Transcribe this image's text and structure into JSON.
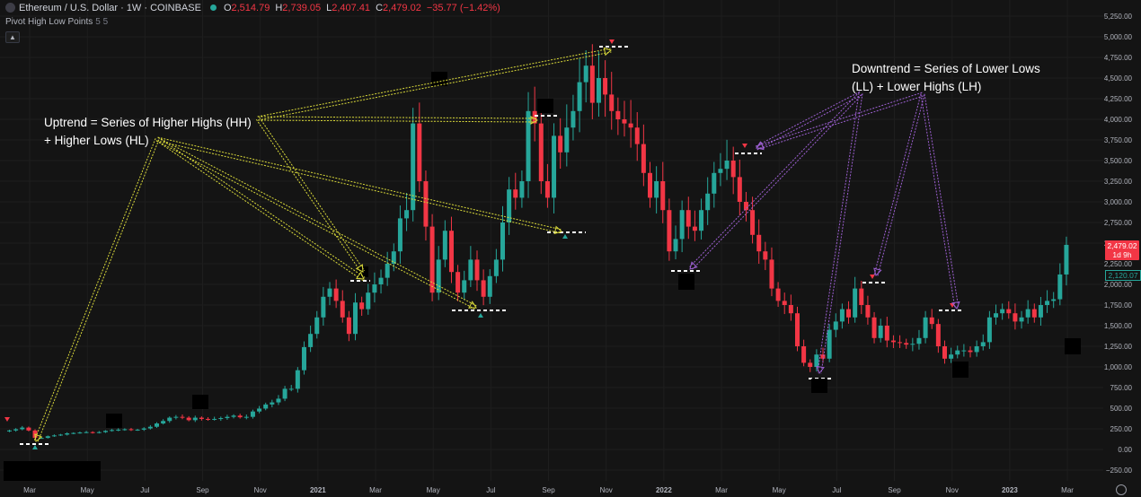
{
  "header": {
    "symbol": "Ethereum / U.S. Dollar · 1W · COINBASE",
    "ohlc": [
      {
        "k": "O",
        "v": "2,514.79"
      },
      {
        "k": "H",
        "v": "2,739.05"
      },
      {
        "k": "L",
        "v": "2,407.41"
      },
      {
        "k": "C",
        "v": "2,479.02"
      },
      {
        "k": "",
        "v": "−35.77 (−1.42%)"
      }
    ]
  },
  "indicator": {
    "name": "Pivot High Low Points",
    "params": "5 5"
  },
  "annotations": {
    "uptrend": [
      "Uptrend = Series of Higher Highs (HH)",
      "+ Higher Lows (HL)"
    ],
    "downtrend": [
      "Downtrend = Series of Lower Lows",
      "(LL) + Lower Highs (LH)"
    ]
  },
  "price_tag": {
    "price": "2,479.02",
    "countdown": "1d 9h",
    "secondary": "2,120.07"
  },
  "colors": {
    "up": "#26a69a",
    "down": "#f23645",
    "background": "#141414",
    "grid": "#1e1e1e",
    "yellow": "#d9d93a",
    "purple": "#9c5fd1"
  },
  "chart_data": {
    "type": "candlestick",
    "y_ticks": [
      "5,250.00",
      "5,000.00",
      "4,750.00",
      "4,500.00",
      "4,250.00",
      "4,000.00",
      "3,750.00",
      "3,500.00",
      "3,250.00",
      "3,000.00",
      "2,750.00",
      "2,500.00",
      "2,250.00",
      "2,000.00",
      "1,750.00",
      "1,500.00",
      "1,250.00",
      "1,000.00",
      "750.00",
      "500.00",
      "250.00",
      "0.00",
      "−250.00"
    ],
    "y_tick_values": [
      5250,
      5000,
      4750,
      4500,
      4250,
      4000,
      3750,
      3500,
      3250,
      3000,
      2750,
      2500,
      2250,
      2000,
      1750,
      1500,
      1250,
      1000,
      750,
      500,
      250,
      0,
      -250
    ],
    "x_ticks": [
      {
        "label": "Mar",
        "week": 0
      },
      {
        "label": "May",
        "week": 9
      },
      {
        "label": "Jul",
        "week": 18
      },
      {
        "label": "Sep",
        "week": 27
      },
      {
        "label": "Nov",
        "week": 36
      },
      {
        "label": "2021",
        "week": 45
      },
      {
        "label": "Mar",
        "week": 54
      },
      {
        "label": "May",
        "week": 63
      },
      {
        "label": "Jul",
        "week": 72
      },
      {
        "label": "Sep",
        "week": 81
      },
      {
        "label": "Nov",
        "week": 90
      },
      {
        "label": "2022",
        "week": 99
      },
      {
        "label": "Mar",
        "week": 108
      },
      {
        "label": "May",
        "week": 117
      },
      {
        "label": "Jul",
        "week": 126
      },
      {
        "label": "Sep",
        "week": 135
      },
      {
        "label": "Nov",
        "week": 144
      },
      {
        "label": "2023",
        "week": 153
      },
      {
        "label": "Mar",
        "week": 162
      }
    ],
    "closes": [
      230,
      245,
      265,
      230,
      140,
      140,
      160,
      170,
      180,
      195,
      200,
      205,
      210,
      205,
      210,
      225,
      235,
      240,
      245,
      235,
      240,
      255,
      275,
      315,
      345,
      385,
      395,
      385,
      355,
      385,
      370,
      365,
      370,
      380,
      395,
      410,
      390,
      395,
      460,
      495,
      545,
      570,
      615,
      735,
      735,
      960,
      1240,
      1400,
      1600,
      1850,
      1950,
      1800,
      1600,
      1400,
      1780,
      1700,
      1900,
      2000,
      2080,
      2250,
      2400,
      2800,
      2900,
      3950,
      3250,
      2700,
      1900,
      2300,
      2650,
      2150,
      1900,
      2050,
      2300,
      2050,
      1850,
      2100,
      2300,
      2750,
      3150,
      3050,
      3250,
      4100,
      3950,
      3250,
      3050,
      3800,
      3600,
      3900,
      4100,
      4450,
      4650,
      4200,
      4500,
      4300,
      4100,
      4000,
      3950,
      3900,
      3700,
      3350,
      3050,
      3250,
      2900,
      2400,
      2550,
      2900,
      2700,
      2650,
      2900,
      3100,
      3350,
      3400,
      3500,
      3300,
      3000,
      2900,
      2600,
      2400,
      2300,
      1950,
      1800,
      1750,
      1650,
      1250,
      1050,
      1000,
      1150,
      1100,
      1450,
      1550,
      1700,
      1600,
      1950,
      1750,
      1600,
      1350,
      1500,
      1320,
      1300,
      1290,
      1270,
      1280,
      1350,
      1600,
      1520,
      1250,
      1100,
      1150,
      1200,
      1200,
      1180,
      1250,
      1300,
      1600,
      1650,
      1700,
      1650,
      1550,
      1600,
      1700,
      1600,
      1750,
      1800,
      1820,
      2120,
      2479
    ]
  }
}
